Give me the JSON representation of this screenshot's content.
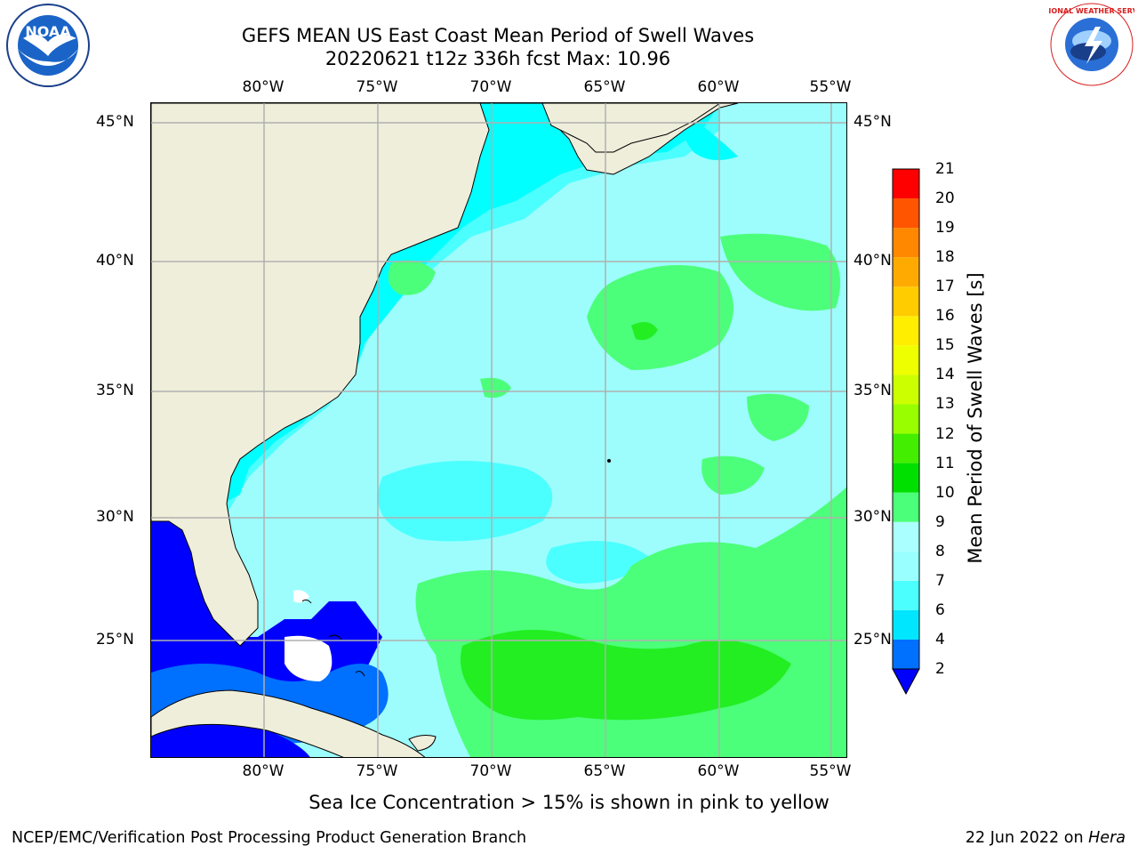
{
  "title_line1": "GEFS MEAN US East Coast Mean Period of Swell Waves",
  "title_line2": "20220621 t12z 336h fcst   Max: 10.96",
  "lon_ticks": [
    "80°W",
    "75°W",
    "70°W",
    "65°W",
    "60°W",
    "55°W"
  ],
  "lat_ticks": [
    "45°N",
    "40°N",
    "35°N",
    "30°N",
    "25°N"
  ],
  "colorbar": {
    "label": "Mean Period of Swell Waves [s]",
    "ticks": [
      "2",
      "4",
      "6",
      "7",
      "8",
      "9",
      "10",
      "11",
      "12",
      "13",
      "14",
      "15",
      "16",
      "17",
      "18",
      "19",
      "20",
      "21"
    ],
    "colors": [
      "#0070ff",
      "#00e6ff",
      "#4cffff",
      "#99ffff",
      "#aaffff",
      "#4cff7a",
      "#00e000",
      "#44ee00",
      "#99ff00",
      "#ccff00",
      "#eeff00",
      "#ffee00",
      "#ffcc00",
      "#ffaa00",
      "#ff8800",
      "#ff5500",
      "#ff0000"
    ],
    "under_color": "#0000ff"
  },
  "footnote": "Sea Ice Concentration > 15% is shown in pink to yellow",
  "credit": "NCEP/EMC/Verification Post Processing Product Generation Branch",
  "date_prefix": "22 Jun 2022 on",
  "date_machine": "Hera",
  "noaa_logo_text": "NOAA",
  "nws_logo_text": "NATIONAL WEATHER SERVICE",
  "colors": {
    "land": "#efeedb",
    "grid": "#b0b0b0",
    "ocean_base": "#9dfdfd"
  }
}
